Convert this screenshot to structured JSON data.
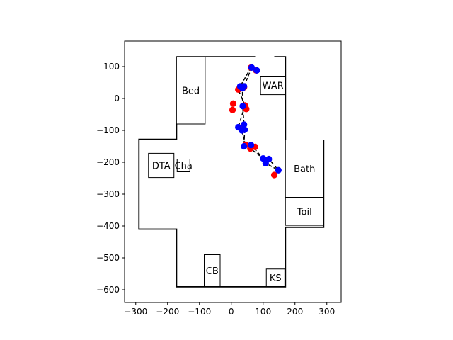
{
  "chart_data": {
    "type": "scatter",
    "title": "",
    "xlabel": "",
    "ylabel": "",
    "xlim": [
      -335,
      345
    ],
    "ylim": [
      -640,
      180
    ],
    "grid": false,
    "xticks": [
      -300,
      -200,
      -100,
      0,
      100,
      200,
      300
    ],
    "yticks": [
      100,
      0,
      -100,
      -200,
      -300,
      -400,
      -500,
      -600
    ],
    "colors": {
      "red": "#ff0000",
      "blue": "#0000ff",
      "path": "#000000",
      "wall": "#000000"
    },
    "floorplan": [
      [
        -172,
        131
      ],
      [
        170,
        131
      ],
      [
        170,
        -132
      ],
      [
        290,
        -132
      ],
      [
        290,
        -404
      ],
      [
        170,
        -404
      ],
      [
        170,
        -591
      ],
      [
        -172,
        -591
      ],
      [
        -172,
        -410
      ],
      [
        -290,
        -410
      ],
      [
        -290,
        -128
      ],
      [
        -172,
        -128
      ],
      [
        -172,
        131
      ]
    ],
    "door_gaps": [
      {
        "x1": 75,
        "y1": 131,
        "x2": 135,
        "y2": 131
      },
      {
        "x1": 170,
        "y1": -188,
        "x2": 170,
        "y2": -248
      },
      {
        "x1": 170,
        "y1": -320,
        "x2": 170,
        "y2": -380
      }
    ],
    "furniture": [
      {
        "label": "Bed",
        "x0": -172,
        "y0": -80,
        "x1": -82,
        "y1": 131
      },
      {
        "label": "WAR",
        "x0": 92,
        "y0": 12,
        "x1": 170,
        "y1": 70
      },
      {
        "label": "DTA",
        "x0": -260,
        "y0": -248,
        "x1": -180,
        "y1": -172
      },
      {
        "label": "Cha",
        "x0": -170,
        "y0": -230,
        "x1": -130,
        "y1": -190
      },
      {
        "label": "Bath",
        "x0": 170,
        "y0": -310,
        "x1": 290,
        "y1": -130
      },
      {
        "label": "Toil",
        "x0": 170,
        "y0": -398,
        "x1": 290,
        "y1": -310
      },
      {
        "label": "CB",
        "x0": -85,
        "y0": -590,
        "x1": -35,
        "y1": -490
      },
      {
        "label": "KS",
        "x0": 110,
        "y0": -590,
        "x1": 168,
        "y1": -535
      }
    ],
    "series": [
      {
        "color": "red",
        "points": [
          [
            62,
            97
          ],
          [
            78,
            88
          ],
          [
            22,
            28
          ],
          [
            40,
            35
          ],
          [
            6,
            -16
          ],
          [
            4,
            -36
          ],
          [
            43,
            -22
          ],
          [
            47,
            -33
          ],
          [
            28,
            -92
          ],
          [
            40,
            -97
          ],
          [
            45,
            -145
          ],
          [
            60,
            -157
          ],
          [
            75,
            -152
          ],
          [
            108,
            -197
          ],
          [
            135,
            -240
          ]
        ]
      },
      {
        "color": "blue",
        "points": [
          [
            64,
            97
          ],
          [
            80,
            88
          ],
          [
            28,
            38
          ],
          [
            35,
            32
          ],
          [
            40,
            38
          ],
          [
            36,
            -24
          ],
          [
            40,
            -82
          ],
          [
            22,
            -90
          ],
          [
            33,
            -100
          ],
          [
            42,
            -98
          ],
          [
            40,
            -150
          ],
          [
            62,
            -146
          ],
          [
            100,
            -188
          ],
          [
            118,
            -190
          ],
          [
            108,
            -203
          ],
          [
            148,
            -225
          ]
        ]
      }
    ],
    "path_a": [
      [
        62,
        97
      ],
      [
        28,
        38
      ],
      [
        35,
        32
      ],
      [
        36,
        -24
      ],
      [
        40,
        -82
      ],
      [
        33,
        -100
      ],
      [
        45,
        -145
      ],
      [
        60,
        -157
      ],
      [
        100,
        -188
      ],
      [
        118,
        -190
      ],
      [
        148,
        -225
      ]
    ],
    "path_b": [
      [
        64,
        97
      ],
      [
        40,
        38
      ],
      [
        22,
        28
      ],
      [
        43,
        -22
      ],
      [
        22,
        -90
      ],
      [
        42,
        -98
      ],
      [
        40,
        -150
      ],
      [
        62,
        -146
      ],
      [
        108,
        -197
      ],
      [
        108,
        -203
      ],
      [
        148,
        -225
      ]
    ]
  }
}
